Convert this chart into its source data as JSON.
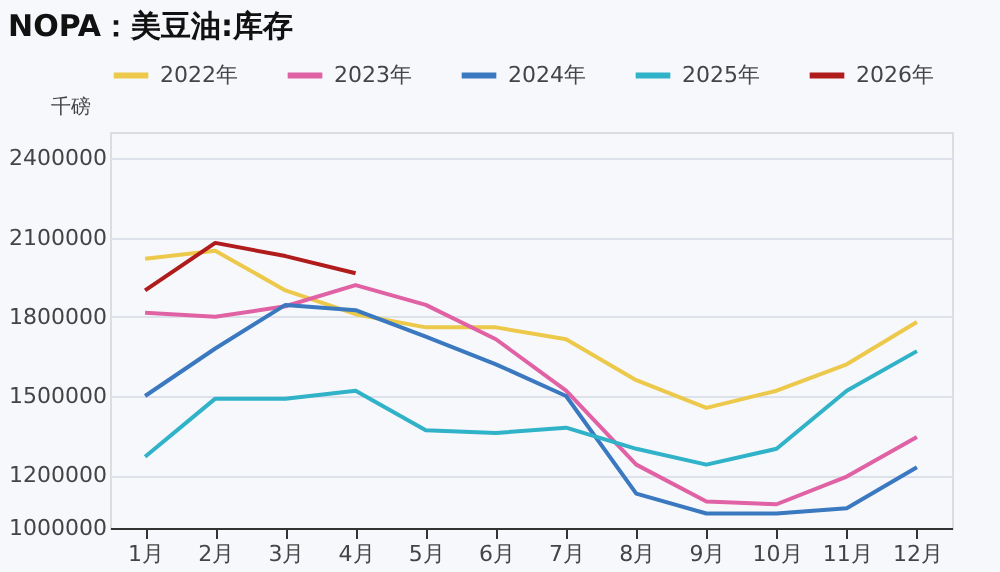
{
  "chart_data": {
    "type": "line",
    "title": "NOPA：美豆油:库存",
    "ylabel": "千磅",
    "categories": [
      "1月",
      "2月",
      "3月",
      "4月",
      "5月",
      "6月",
      "7月",
      "8月",
      "9月",
      "10月",
      "11月",
      "12月"
    ],
    "series": [
      {
        "name": "2022年",
        "color": "#ecc94b",
        "values": [
          2020000,
          2050000,
          1900000,
          1810000,
          1760000,
          1760000,
          1715000,
          1560000,
          1455000,
          1520000,
          1620000,
          1780000
        ]
      },
      {
        "name": "2023年",
        "color": "#e062a4",
        "values": [
          1815000,
          1800000,
          1840000,
          1920000,
          1845000,
          1715000,
          1520000,
          1240000,
          1100000,
          1090000,
          1195000,
          1345000
        ]
      },
      {
        "name": "2024年",
        "color": "#3a78c0",
        "values": [
          1500000,
          1680000,
          1845000,
          1825000,
          1725000,
          1620000,
          1500000,
          1130000,
          1055000,
          1055000,
          1075000,
          1230000
        ]
      },
      {
        "name": "2025年",
        "color": "#30b2c8",
        "values": [
          1270000,
          1490000,
          1490000,
          1520000,
          1370000,
          1360000,
          1380000,
          1300000,
          1240000,
          1300000,
          1520000,
          1670000
        ]
      },
      {
        "name": "2026年",
        "color": "#b01c1c",
        "values": [
          1900000,
          2080000,
          2030000,
          1965000,
          null,
          null,
          null,
          null,
          null,
          null,
          null,
          null
        ]
      }
    ],
    "ylim": [
      1000000,
      2500000
    ],
    "yticks": [
      1000000,
      1200000,
      1500000,
      1800000,
      2100000,
      2400000
    ],
    "grid": "y",
    "legend": "top left",
    "marker": "none",
    "line_style": "solid"
  }
}
